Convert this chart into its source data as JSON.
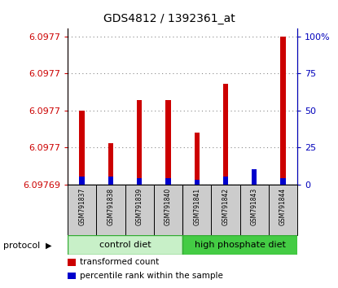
{
  "title": "GDS4812 / 1392361_at",
  "samples": [
    "GSM791837",
    "GSM791838",
    "GSM791839",
    "GSM791840",
    "GSM791841",
    "GSM791842",
    "GSM791843",
    "GSM791844"
  ],
  "red_values_pct": [
    50,
    28,
    57,
    57,
    35,
    68,
    0,
    100
  ],
  "blue_values_pct": [
    5,
    5,
    4,
    4,
    3,
    5,
    10,
    4
  ],
  "right_yticks": [
    0,
    25,
    50,
    75,
    100
  ],
  "right_ytick_labels": [
    "0",
    "25",
    "50",
    "75",
    "100%"
  ],
  "left_ytick_positions": [
    0,
    25,
    50,
    75,
    100
  ],
  "left_ytick_labels": [
    "6.09769",
    "6.0977",
    "6.0977",
    "6.0977",
    "6.0977"
  ],
  "bar_width": 0.18,
  "red_color": "#cc0000",
  "blue_color": "#0000cc",
  "grid_color": "#888888",
  "ctrl_diet_color": "#c8f5c8",
  "hpd_color": "#50cc50",
  "ylabel_left_color": "#cc0000",
  "ylabel_right_color": "#0000bb",
  "legend_items": [
    {
      "label": "transformed count",
      "color": "#cc0000"
    },
    {
      "label": "percentile rank within the sample",
      "color": "#0000cc"
    }
  ]
}
